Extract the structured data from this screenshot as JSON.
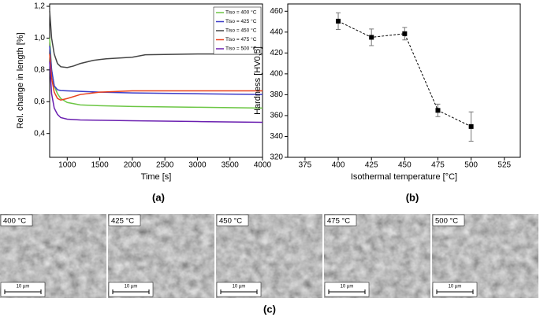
{
  "chart_data": [
    {
      "type": "line",
      "xlabel": "Time [s]",
      "ylabel": "Rel. change in length [%]",
      "xlim": [
        730,
        4000
      ],
      "ylim": [
        0.25,
        1.215
      ],
      "xticks": [
        1000,
        1500,
        2000,
        2500,
        3000,
        3500,
        4000
      ],
      "yticks": [
        {
          "value": 0.4,
          "label": "0,4"
        },
        {
          "value": 0.6,
          "label": "0,6"
        },
        {
          "value": 0.8,
          "label": "0,8"
        },
        {
          "value": 1.0,
          "label": "1,0"
        },
        {
          "value": 1.2,
          "label": "1,2"
        }
      ],
      "legend": "upper right",
      "series": [
        {
          "name": "Tiso = 400 °C",
          "color": "#6cc644",
          "x": [
            730,
            760,
            800,
            850,
            900,
            1000,
            1200,
            1500,
            2000,
            3000,
            4000
          ],
          "values": [
            1.0,
            0.8,
            0.7,
            0.65,
            0.62,
            0.595,
            0.58,
            0.575,
            0.57,
            0.565,
            0.56
          ]
        },
        {
          "name": "Tiso = 425 °C",
          "color": "#3c3cc8",
          "x": [
            730,
            760,
            800,
            850,
            900,
            1000,
            1500,
            2000,
            3000,
            4000
          ],
          "values": [
            0.95,
            0.8,
            0.7,
            0.675,
            0.67,
            0.668,
            0.66,
            0.655,
            0.65,
            0.645
          ]
        },
        {
          "name": "Tiso = 450 °C",
          "color": "#444444",
          "x": [
            730,
            760,
            800,
            850,
            900,
            1000,
            1100,
            1200,
            1400,
            1600,
            2000,
            2200,
            3000,
            4000
          ],
          "values": [
            1.17,
            1.0,
            0.9,
            0.84,
            0.82,
            0.815,
            0.825,
            0.84,
            0.86,
            0.87,
            0.88,
            0.895,
            0.9,
            0.9
          ]
        },
        {
          "name": "Tiso = 475 °C",
          "color": "#e8401c",
          "x": [
            730,
            760,
            800,
            850,
            900,
            1000,
            1200,
            1500,
            2000,
            3000,
            4000
          ],
          "values": [
            0.9,
            0.75,
            0.66,
            0.62,
            0.61,
            0.62,
            0.645,
            0.66,
            0.668,
            0.668,
            0.668
          ]
        },
        {
          "name": "Tiso = 500 °C",
          "color": "#6a1fb0",
          "x": [
            730,
            760,
            800,
            850,
            900,
            1000,
            1200,
            1500,
            2000,
            3000,
            4000
          ],
          "values": [
            0.85,
            0.65,
            0.56,
            0.52,
            0.5,
            0.49,
            0.485,
            0.483,
            0.48,
            0.475,
            0.47
          ]
        }
      ]
    },
    {
      "type": "errorbar",
      "xlabel": "Isothermal temperature [°C]",
      "ylabel": "Hardness [HV0,5]",
      "xlim": [
        362,
        537
      ],
      "ylim": [
        320,
        467
      ],
      "xticks": [
        375,
        400,
        425,
        450,
        475,
        500,
        525
      ],
      "yticks": [
        320,
        340,
        360,
        380,
        400,
        420,
        440,
        460
      ],
      "color": "#000000",
      "x": [
        400,
        425,
        450,
        475,
        500
      ],
      "values": [
        450.5,
        435,
        438.5,
        365,
        349.5
      ],
      "errors": [
        8,
        8,
        6,
        6,
        14
      ]
    }
  ],
  "panels": [
    "(a)",
    "(b)",
    "(c)"
  ],
  "micrographs": [
    {
      "label": "400 °C",
      "scale": "10 µm"
    },
    {
      "label": "425 °C",
      "scale": "10 µm"
    },
    {
      "label": "450 °C",
      "scale": "10 µm"
    },
    {
      "label": "475 °C",
      "scale": "10 µm"
    },
    {
      "label": "500 °C",
      "scale": "10 µm"
    }
  ]
}
